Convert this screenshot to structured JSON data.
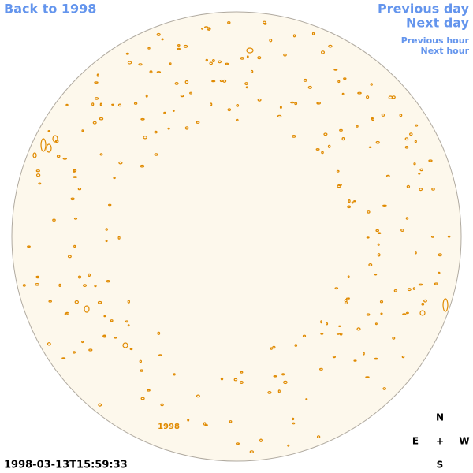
{
  "nav": {
    "back": "Back to 1998",
    "previous_day": "Previous day",
    "next_day": "Next day",
    "previous_hour": "Previous hour",
    "next_hour": "Next hour"
  },
  "disk_label": "1998",
  "timestamp": "1998-03-13T15:59:33",
  "compass": {
    "north": "N",
    "east": "E",
    "center": "+",
    "west": "W",
    "south": "S"
  }
}
